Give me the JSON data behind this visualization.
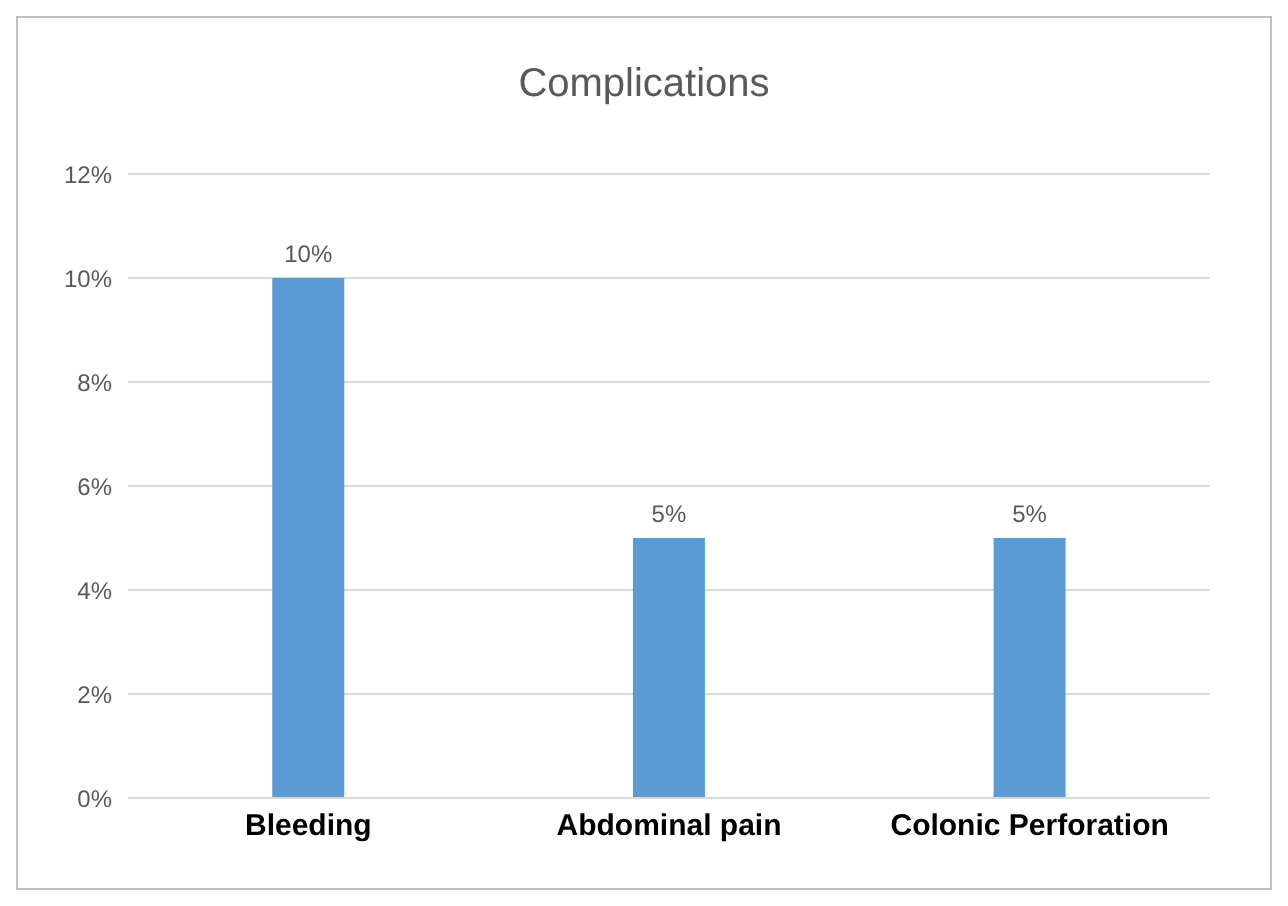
{
  "chart_data": {
    "type": "bar",
    "title": "Complications",
    "categories": [
      "Bleeding",
      "Abdominal pain",
      "Colonic Perforation"
    ],
    "values": [
      10,
      5,
      5
    ],
    "value_labels": [
      "10%",
      "5%",
      "5%"
    ],
    "color": "#5b9bd5",
    "ylim": [
      0,
      12
    ],
    "yticks": [
      {
        "value": 0,
        "label": "0%"
      },
      {
        "value": 2,
        "label": "2%"
      },
      {
        "value": 4,
        "label": "4%"
      },
      {
        "value": 6,
        "label": "6%"
      },
      {
        "value": 8,
        "label": "8%"
      },
      {
        "value": 10,
        "label": "10%"
      },
      {
        "value": 12,
        "label": "12%"
      }
    ],
    "grid": "y"
  }
}
